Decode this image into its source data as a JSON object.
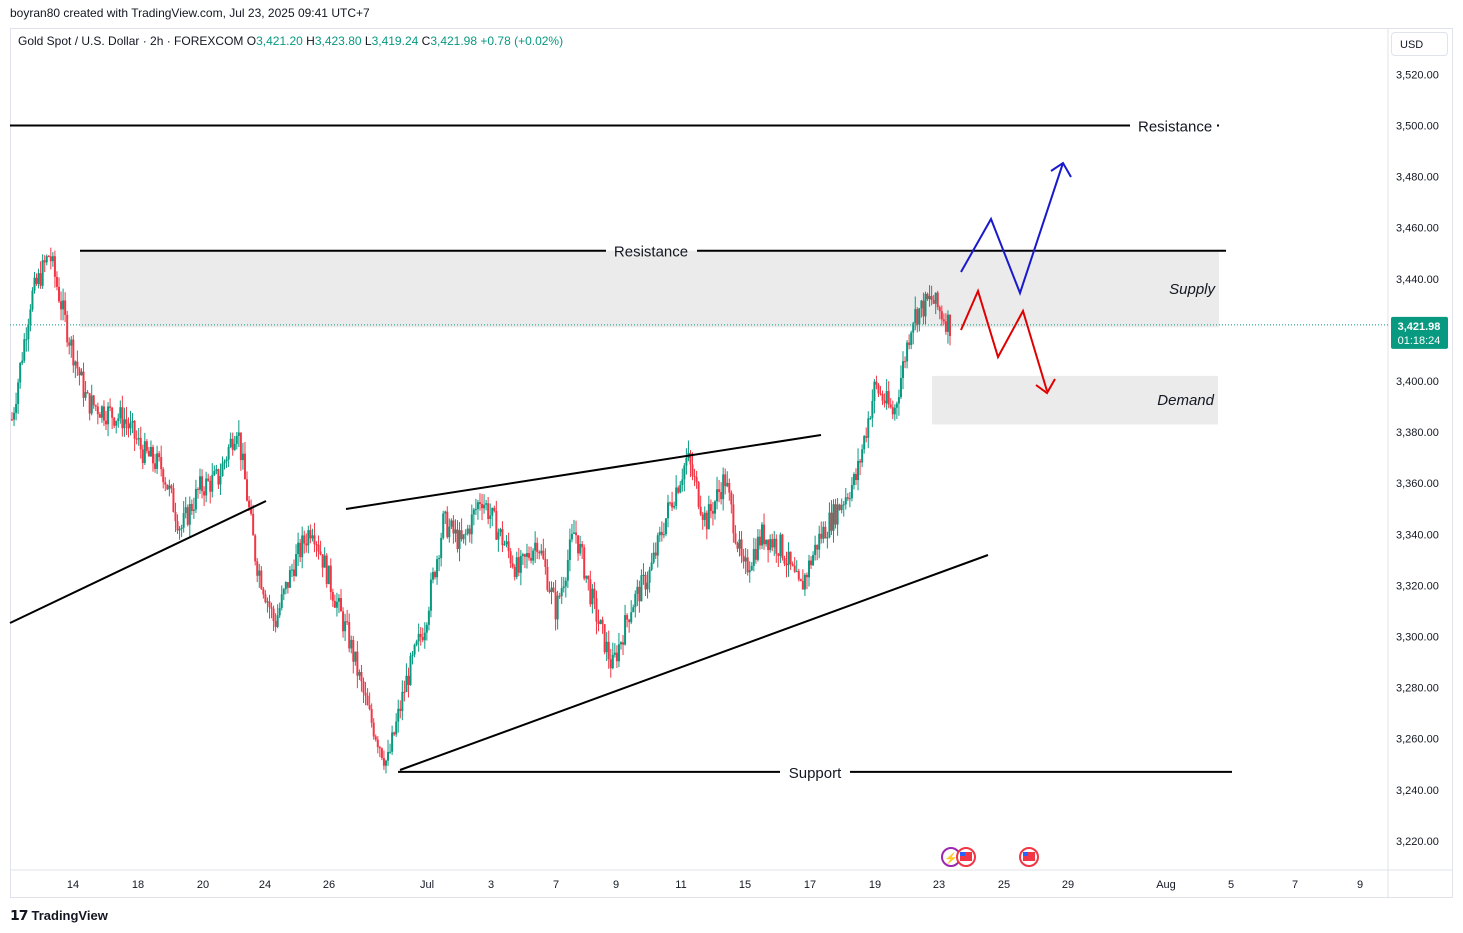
{
  "credit": "boyran80 created with TradingView.com, Jul 23, 2025 09:41 UTC+7",
  "symbol": {
    "name": "Gold Spot / U.S. Dollar · 2h · FOREXCOM",
    "open_label": "O",
    "open": "3,421.20",
    "high_label": "H",
    "high": "3,423.80",
    "low_label": "L",
    "low": "3,419.24",
    "close_label": "C",
    "close": "3,421.98",
    "change": "+0.78 (+0.02%)"
  },
  "currency": "USD",
  "price_tag": {
    "price": "3,421.98",
    "countdown": "01:18:24"
  },
  "footer": {
    "brand": "TradingView"
  },
  "colors": {
    "up": "#089981",
    "down": "#f23645",
    "zone": "#ebebeb",
    "blue_path": "#1a1acd",
    "red_path": "#e00000",
    "trendline": "#000000"
  },
  "chart_data": {
    "type": "candlestick",
    "ylim": [
      3208,
      3532
    ],
    "y_ticks": [
      "3,520.00",
      "3,500.00",
      "3,480.00",
      "3,460.00",
      "3,440.00",
      "3,420.00",
      "3,400.00",
      "3,380.00",
      "3,360.00",
      "3,340.00",
      "3,320.00",
      "3,300.00",
      "3,280.00",
      "3,260.00",
      "3,240.00",
      "3,220.00"
    ],
    "x_ticks": [
      "14",
      "18",
      "20",
      "24",
      "26",
      "Jul",
      "3",
      "7",
      "9",
      "11",
      "15",
      "17",
      "19",
      "23",
      "25",
      "29",
      "Aug",
      "5",
      "7",
      "9"
    ],
    "close_series": [
      {
        "date": "2025-06-12",
        "price": 3385
      },
      {
        "date": "2025-06-13",
        "price": 3432
      },
      {
        "date": "2025-06-13",
        "price": 3450
      },
      {
        "date": "2025-06-15",
        "price": 3418
      },
      {
        "date": "2025-06-16",
        "price": 3392
      },
      {
        "date": "2025-06-17",
        "price": 3388
      },
      {
        "date": "2025-06-18",
        "price": 3385
      },
      {
        "date": "2025-06-19",
        "price": 3372
      },
      {
        "date": "2025-06-20",
        "price": 3366
      },
      {
        "date": "2025-06-21",
        "price": 3342
      },
      {
        "date": "2025-06-22",
        "price": 3358
      },
      {
        "date": "2025-06-23",
        "price": 3362
      },
      {
        "date": "2025-06-23",
        "price": 3383
      },
      {
        "date": "2025-06-24",
        "price": 3330
      },
      {
        "date": "2025-06-25",
        "price": 3305
      },
      {
        "date": "2025-06-26",
        "price": 3328
      },
      {
        "date": "2025-06-26",
        "price": 3344
      },
      {
        "date": "2025-06-27",
        "price": 3320
      },
      {
        "date": "2025-06-28",
        "price": 3298
      },
      {
        "date": "2025-06-29",
        "price": 3270
      },
      {
        "date": "2025-06-30",
        "price": 3250
      },
      {
        "date": "2025-06-30",
        "price": 3282
      },
      {
        "date": "2025-07-01",
        "price": 3305
      },
      {
        "date": "2025-07-01",
        "price": 3345
      },
      {
        "date": "2025-07-02",
        "price": 3336
      },
      {
        "date": "2025-07-03",
        "price": 3355
      },
      {
        "date": "2025-07-04",
        "price": 3340
      },
      {
        "date": "2025-07-05",
        "price": 3325
      },
      {
        "date": "2025-07-06",
        "price": 3338
      },
      {
        "date": "2025-07-07",
        "price": 3310
      },
      {
        "date": "2025-07-08",
        "price": 3342
      },
      {
        "date": "2025-07-09",
        "price": 3312
      },
      {
        "date": "2025-07-10",
        "price": 3288
      },
      {
        "date": "2025-07-11",
        "price": 3312
      },
      {
        "date": "2025-07-12",
        "price": 3325
      },
      {
        "date": "2025-07-13",
        "price": 3350
      },
      {
        "date": "2025-07-14",
        "price": 3370
      },
      {
        "date": "2025-07-15",
        "price": 3345
      },
      {
        "date": "2025-07-15",
        "price": 3362
      },
      {
        "date": "2025-07-16",
        "price": 3325
      },
      {
        "date": "2025-07-17",
        "price": 3340
      },
      {
        "date": "2025-07-17",
        "price": 3335
      },
      {
        "date": "2025-07-18",
        "price": 3318
      },
      {
        "date": "2025-07-19",
        "price": 3338
      },
      {
        "date": "2025-07-20",
        "price": 3350
      },
      {
        "date": "2025-07-21",
        "price": 3362
      },
      {
        "date": "2025-07-21",
        "price": 3398
      },
      {
        "date": "2025-07-22",
        "price": 3387
      },
      {
        "date": "2025-07-22",
        "price": 3425
      },
      {
        "date": "2025-07-23",
        "price": 3432
      },
      {
        "date": "2025-07-23",
        "price": 3421.98
      }
    ],
    "annotations": {
      "resistance_top": {
        "label": "Resistance",
        "price": 3500
      },
      "resistance": {
        "label": "Resistance",
        "price": 3451
      },
      "support": {
        "label": "Support",
        "price": 3247
      },
      "supply": {
        "label": "Supply",
        "top": 3451,
        "bottom": 3421
      },
      "demand": {
        "label": "Demand",
        "top": 3402,
        "bottom": 3383
      }
    }
  }
}
